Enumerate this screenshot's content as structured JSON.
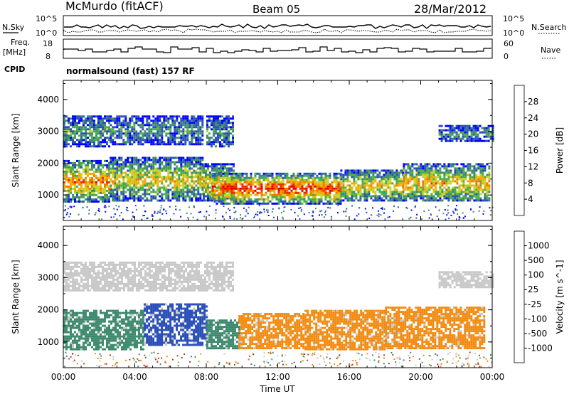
{
  "header": {
    "station": "McMurdo (fitACF)",
    "beam": "Beam 05",
    "date": "28/Mar/2012"
  },
  "top_panel": {
    "left_label_1": "N.Sky",
    "left_tick_hi": "10^5",
    "left_tick_lo": "10^0",
    "right_tick_hi": "10^5",
    "right_tick_lo": "10^0",
    "right_label_1": "N.Search",
    "freq_label_a": "Freq.",
    "freq_label_b": "[MHz]",
    "freq_tick_hi": "18",
    "freq_tick_lo": "8",
    "nave_tick_hi": "60",
    "nave_tick_lo": "0",
    "right_label_2": "Nave",
    "cpid_label": "CPID",
    "cpid_value": "normalsound (fast) 157 RF"
  },
  "chart_data": [
    {
      "type": "heatmap",
      "title": "",
      "xlabel": "Time UT",
      "ylabel": "Slant Range [km]",
      "xlim": [
        0,
        24
      ],
      "ylim": [
        200,
        4600
      ],
      "x_ticks": [
        "00:00",
        "04:00",
        "08:00",
        "12:00",
        "16:00",
        "20:00",
        "00:00"
      ],
      "y_ticks": [
        "1000",
        "2000",
        "3000",
        "4000"
      ],
      "colorbar": {
        "label": "Power [dB]",
        "ticks": [
          "28",
          "24",
          "20",
          "16",
          "12",
          "8",
          "4"
        ],
        "colors": [
          "#0000ff",
          "#2a4fb8",
          "#3d8a6e",
          "#49b043",
          "#c8d42a",
          "#f5a800",
          "#f07800",
          "#ee2a00",
          "#e00000"
        ]
      },
      "echo_bands": [
        {
          "t0": 0.0,
          "t1": 2.6,
          "r0": 800,
          "r1": 2100,
          "level": 0.75
        },
        {
          "t0": 0.0,
          "t1": 2.6,
          "r0": 2500,
          "r1": 3500,
          "level": 0.35
        },
        {
          "t0": 2.6,
          "t1": 7.8,
          "r0": 800,
          "r1": 2200,
          "level": 0.55
        },
        {
          "t0": 2.6,
          "t1": 7.8,
          "r0": 2600,
          "r1": 3500,
          "level": 0.3
        },
        {
          "t0": 7.8,
          "t1": 9.5,
          "r0": 800,
          "r1": 2000,
          "level": 0.6
        },
        {
          "t0": 8.0,
          "t1": 9.5,
          "r0": 2500,
          "r1": 3500,
          "level": 0.3
        },
        {
          "t0": 8.3,
          "t1": 15.5,
          "r0": 750,
          "r1": 1700,
          "level": 0.9
        },
        {
          "t0": 15.5,
          "t1": 19.0,
          "r0": 800,
          "r1": 1800,
          "level": 0.6
        },
        {
          "t0": 19.0,
          "t1": 23.8,
          "r0": 800,
          "r1": 2000,
          "level": 0.65
        },
        {
          "t0": 21.0,
          "t1": 24.0,
          "r0": 2700,
          "r1": 3200,
          "level": 0.3
        }
      ]
    },
    {
      "type": "heatmap",
      "title": "",
      "xlabel": "Time UT",
      "ylabel": "Slant Range [km]",
      "xlim": [
        0,
        24
      ],
      "ylim": [
        200,
        4600
      ],
      "x_ticks": [
        "00:00",
        "04:00",
        "08:00",
        "12:00",
        "16:00",
        "20:00",
        "00:00"
      ],
      "y_ticks": [
        "1000",
        "2000",
        "3000",
        "4000"
      ],
      "colorbar": {
        "label": "Velocity [m s^-1]",
        "ticks": [
          "1000",
          "500",
          "100",
          "25",
          "-25",
          "-100",
          "-500",
          "-1000"
        ],
        "colors": [
          "#e00000",
          "#f06a00",
          "#f49c10",
          "#f7c070",
          "#c8c8c8",
          "#49b043",
          "#3d8a6e",
          "#2a4fb8",
          "#0000ff"
        ]
      },
      "echo_bands": [
        {
          "t0": 0.0,
          "t1": 4.5,
          "r0": 800,
          "r1": 2000,
          "cls": "green"
        },
        {
          "t0": 0.0,
          "t1": 9.5,
          "r0": 2600,
          "r1": 3500,
          "cls": "grey"
        },
        {
          "t0": 4.5,
          "t1": 8.0,
          "r0": 900,
          "r1": 2200,
          "cls": "blue"
        },
        {
          "t0": 8.0,
          "t1": 9.8,
          "r0": 800,
          "r1": 1700,
          "cls": "green"
        },
        {
          "t0": 9.8,
          "t1": 13.5,
          "r0": 800,
          "r1": 1900,
          "cls": "orange"
        },
        {
          "t0": 13.5,
          "t1": 18.0,
          "r0": 750,
          "r1": 2000,
          "cls": "orange"
        },
        {
          "t0": 18.0,
          "t1": 23.6,
          "r0": 800,
          "r1": 2100,
          "cls": "orange"
        },
        {
          "t0": 21.0,
          "t1": 24.0,
          "r0": 2700,
          "r1": 3200,
          "cls": "grey"
        }
      ]
    }
  ]
}
